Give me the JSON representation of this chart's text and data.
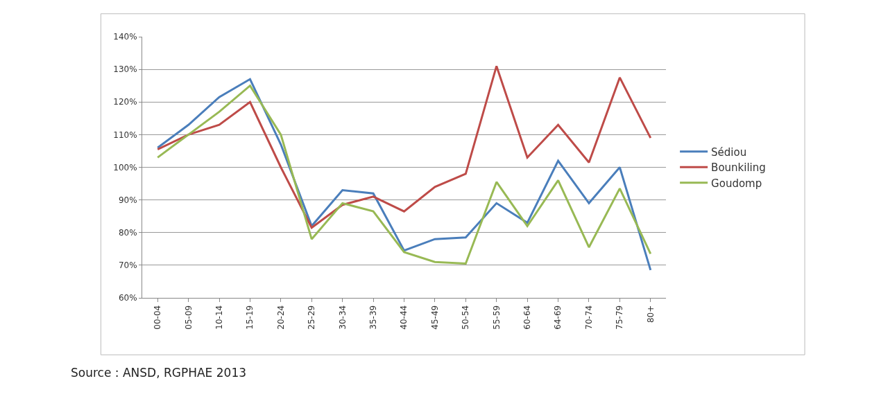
{
  "chart_data": {
    "type": "line",
    "categories": [
      "00-04",
      "05-09",
      "10-14",
      "15-19",
      "20-24",
      "25-29",
      "30-34",
      "35-39",
      "40-44",
      "45-49",
      "50-54",
      "55-59",
      "60-64",
      "64-69",
      "70-74",
      "75-79",
      "80+"
    ],
    "series": [
      {
        "name": "Sédiou",
        "color": "#4a7ebb",
        "values": [
          106,
          113,
          121.5,
          127,
          107,
          82,
          93,
          92,
          74.5,
          78,
          78.5,
          89,
          83,
          102,
          89,
          100,
          68.5
        ]
      },
      {
        "name": "Bounkiling",
        "color": "#be4b48",
        "values": [
          105.5,
          110,
          113,
          120,
          100,
          81.5,
          88.5,
          91,
          86.5,
          94,
          98,
          131,
          103,
          113,
          101.5,
          127.5,
          109
        ]
      },
      {
        "name": "Goudomp",
        "color": "#98b954",
        "values": [
          103,
          110,
          117,
          125,
          110,
          78,
          89,
          86.5,
          74,
          71,
          70.5,
          95.5,
          82,
          96,
          75.5,
          93.5,
          73.5
        ]
      }
    ],
    "ylim": [
      60,
      140
    ],
    "yticks": [
      {
        "value": 60,
        "label": "60%"
      },
      {
        "value": 70,
        "label": "70%"
      },
      {
        "value": 80,
        "label": "80%"
      },
      {
        "value": 90,
        "label": "90%"
      },
      {
        "value": 100,
        "label": "100%"
      },
      {
        "value": 110,
        "label": "110%"
      },
      {
        "value": 120,
        "label": "120%"
      },
      {
        "value": 130,
        "label": "130%"
      },
      {
        "value": 140,
        "label": "140%"
      }
    ],
    "grid": "y",
    "legend": "right",
    "marker": "none",
    "line_style": "solid",
    "annotations": [
      "Source : ANSD, RGPHAE 2013"
    ]
  }
}
